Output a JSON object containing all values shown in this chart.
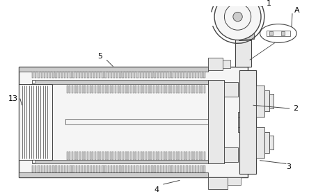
{
  "bg_color": "#ffffff",
  "lc": "#444444",
  "fg": "#cccccc",
  "fl": "#e8e8e8",
  "fw": "#f5f5f5",
  "figsize": [
    4.44,
    2.79
  ],
  "dpi": 100
}
